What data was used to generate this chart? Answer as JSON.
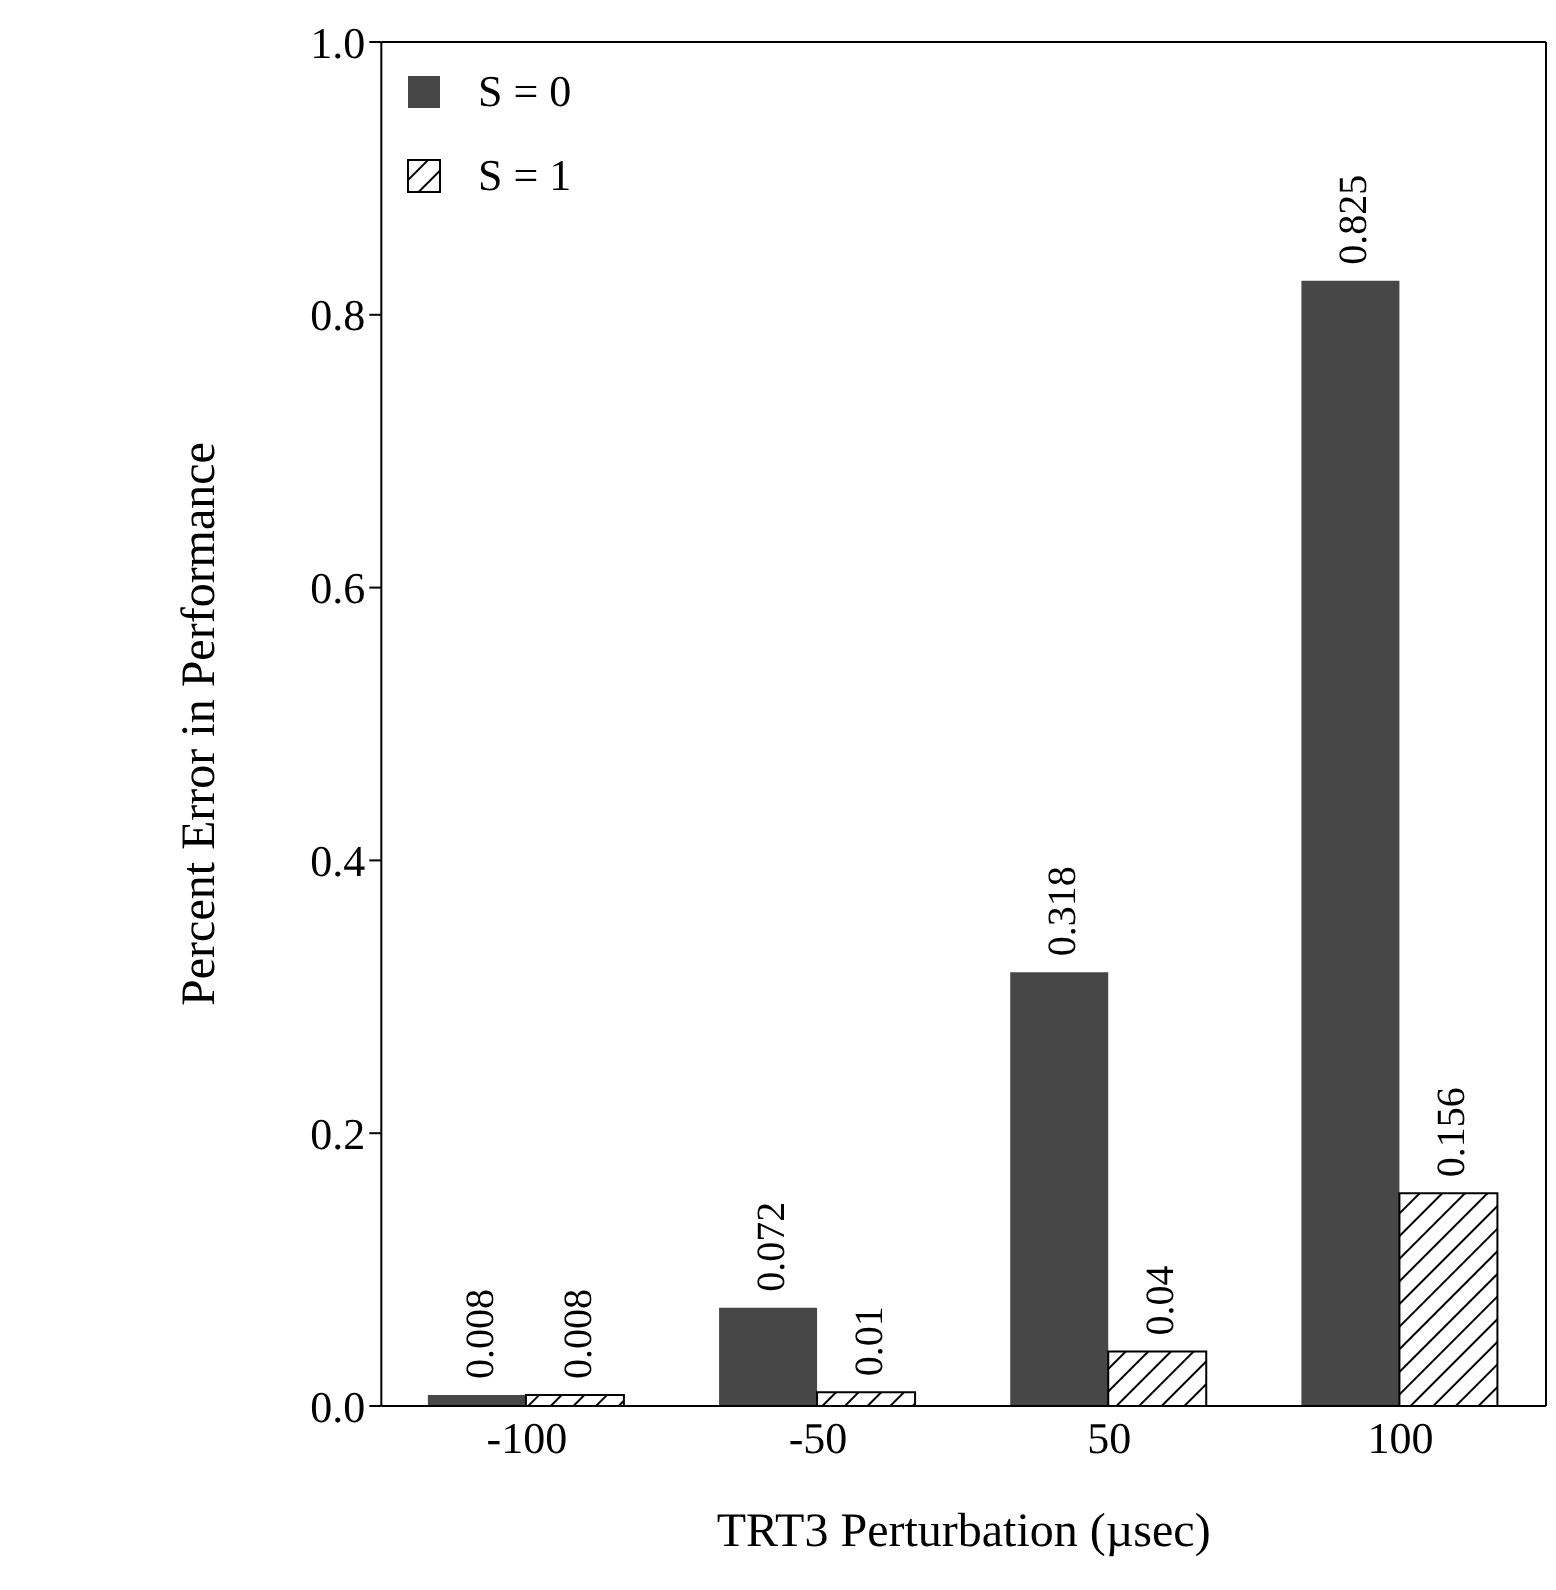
{
  "chart_data": {
    "type": "bar",
    "xlabel": "TRT3 Perturbation (µsec)",
    "ylabel": "Percent Error in Performance",
    "categories": [
      "-100",
      "-50",
      "50",
      "100"
    ],
    "series": [
      {
        "name": "S = 0",
        "color": "#474747",
        "values": [
          0.008,
          0.072,
          0.318,
          0.825
        ]
      },
      {
        "name": "S = 1",
        "color": "#000000",
        "values": [
          0.008,
          0.01,
          0.04,
          0.156
        ]
      }
    ],
    "ylim": [
      0,
      1
    ],
    "yticks": [
      {
        "value": 0,
        "label": "0.0"
      },
      {
        "value": 0.2,
        "label": "0.2"
      },
      {
        "value": 0.4,
        "label": "0.4"
      },
      {
        "value": 0.6,
        "label": "0.6"
      },
      {
        "value": 0.8,
        "label": "0.8"
      },
      {
        "value": 1,
        "label": "1.0"
      }
    ],
    "data_labels": true,
    "legend": "top left",
    "grid": false
  }
}
